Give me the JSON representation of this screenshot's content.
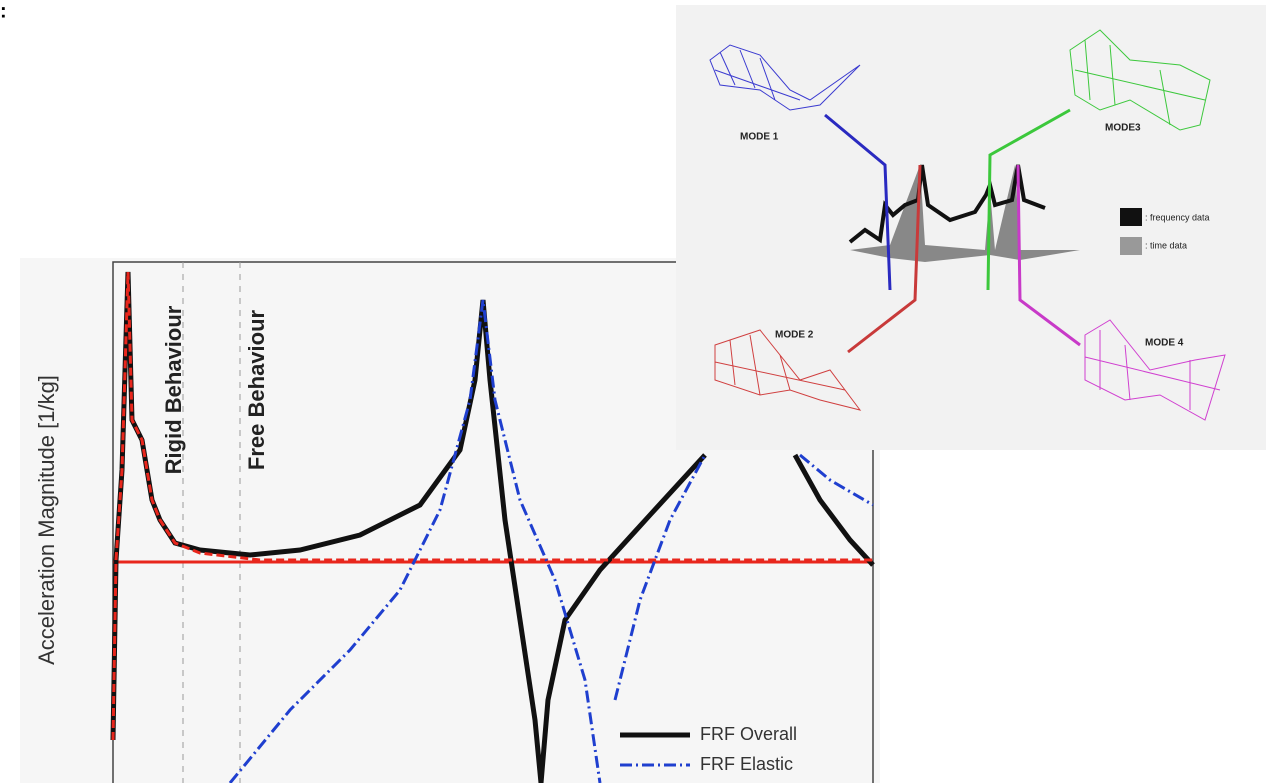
{
  "corner_mark": ":",
  "plot": {
    "y_axis_label": "Acceleration Magnitude [1/kg]",
    "annotations": [
      "Rigid Behaviour",
      "Free Behaviour"
    ],
    "legend": [
      "FRF Overall",
      "FRF Elastic"
    ]
  },
  "diagram": {
    "modes": [
      "MODE 1",
      "MODE3",
      "MODE 2",
      "MODE 4"
    ],
    "legend": [
      ": frequency data",
      ": time data"
    ]
  }
}
